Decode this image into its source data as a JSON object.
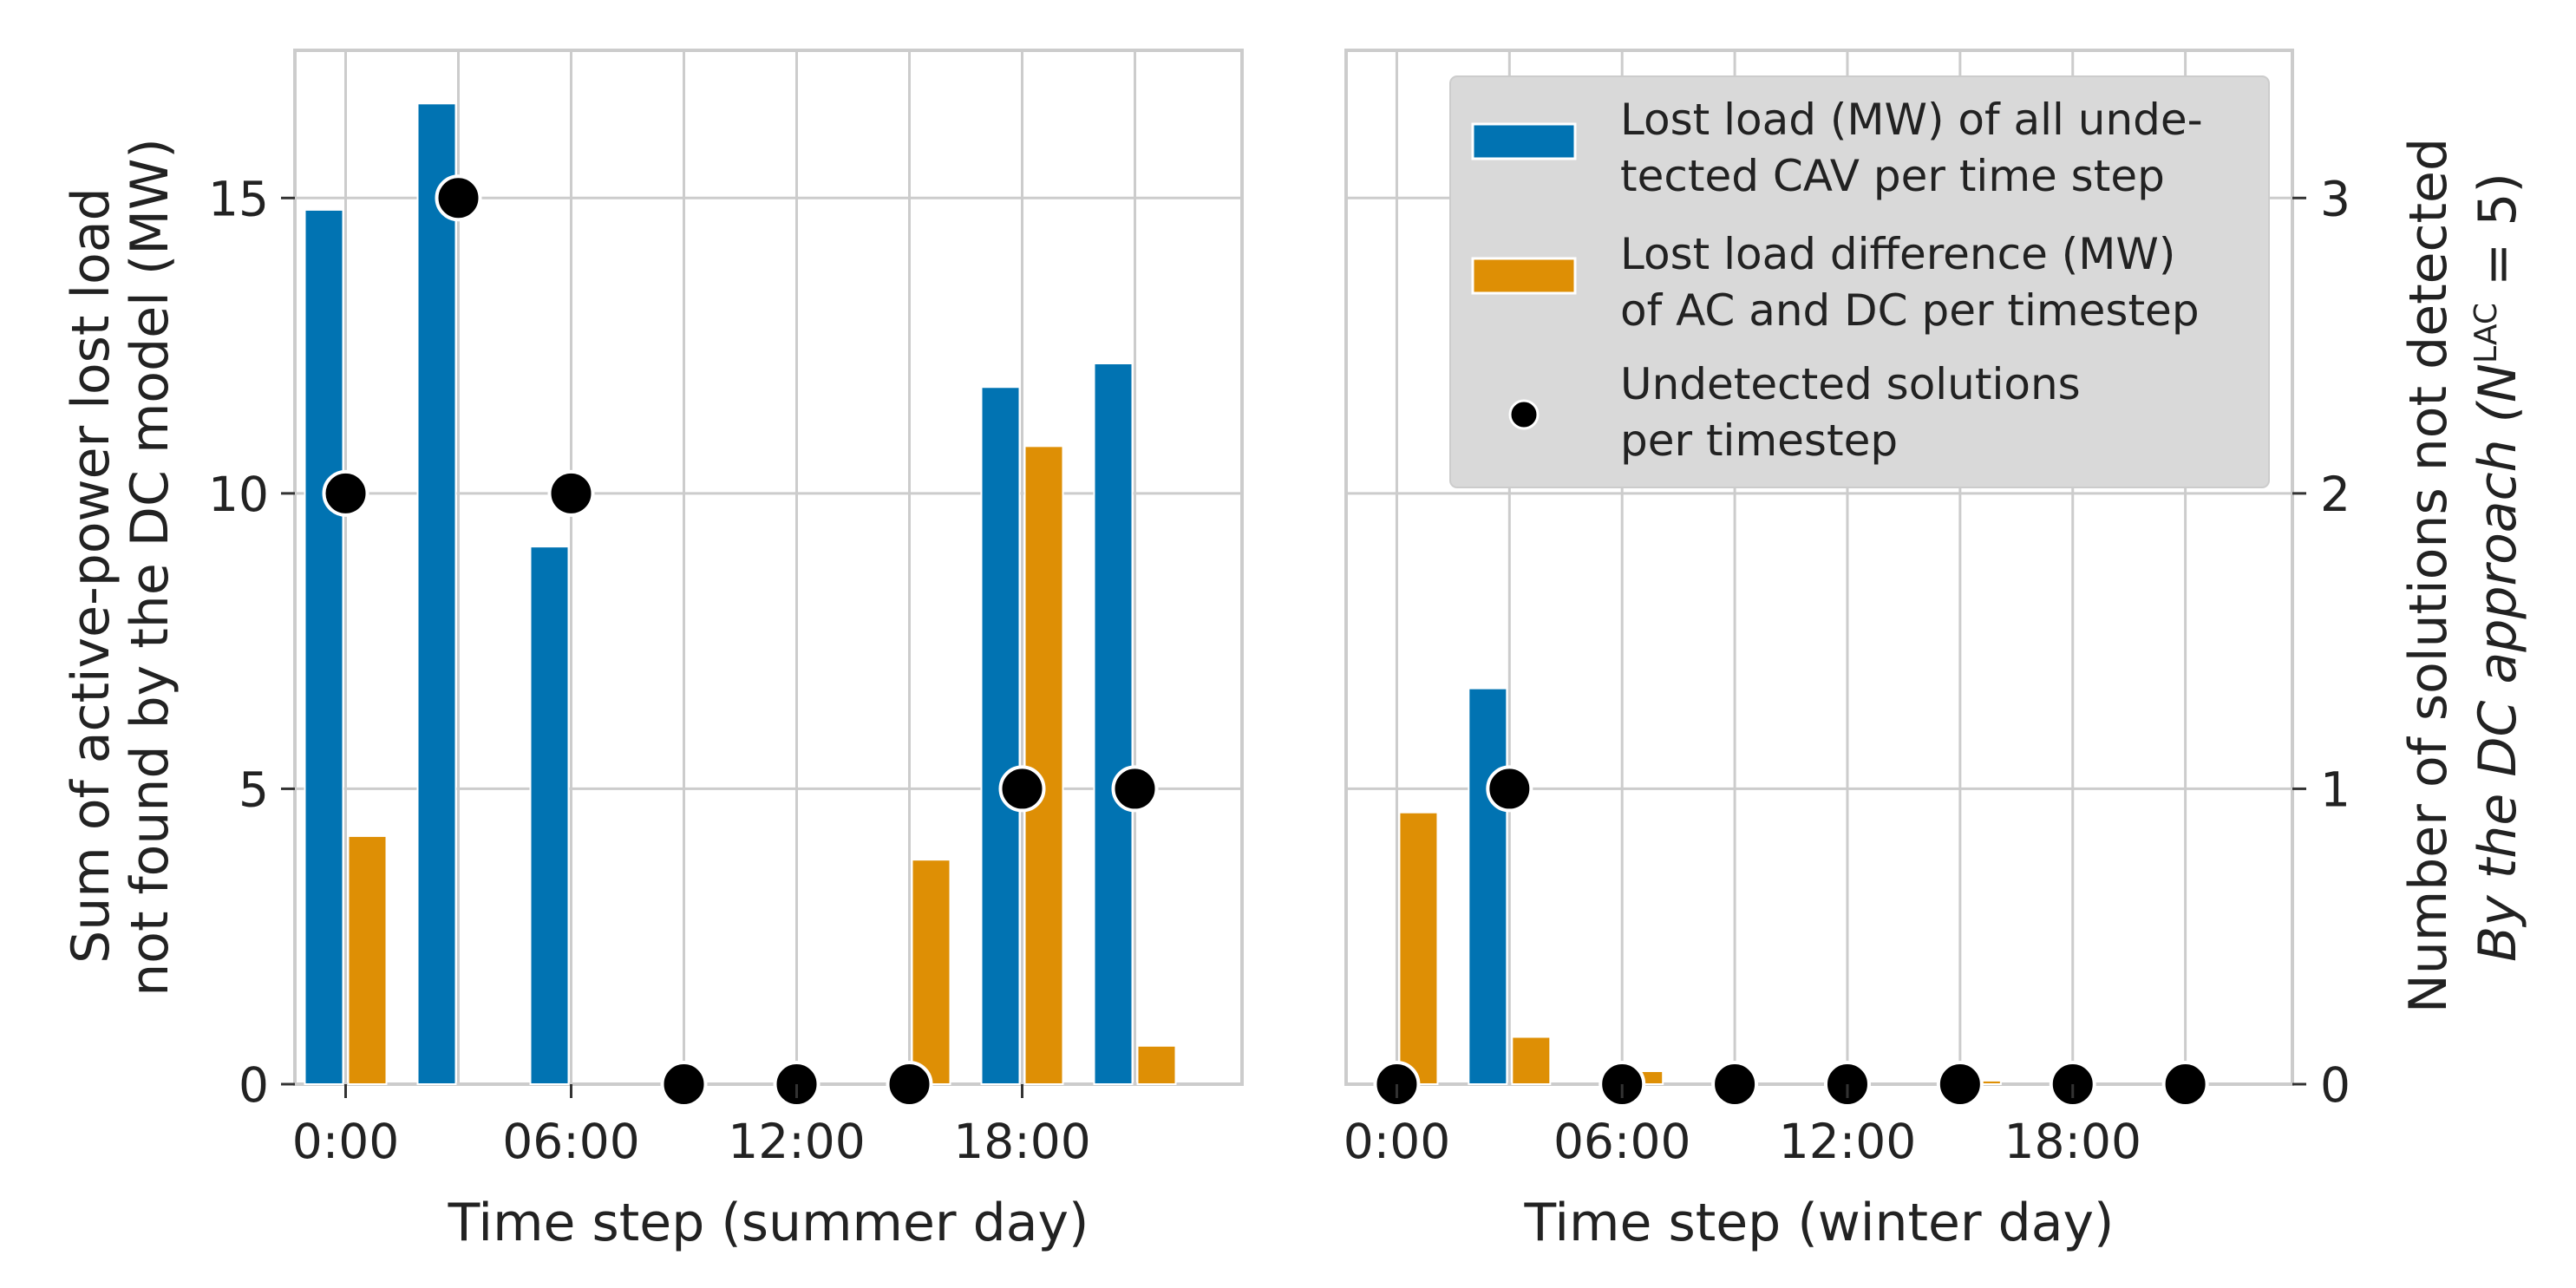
{
  "chart_data": [
    {
      "id": "summer",
      "type": "bar",
      "xlabel": "Time step (summer day)",
      "ylabel_lines": [
        "Sum of active-power lost load",
        "not found by the DC model (MW)"
      ],
      "ylim": [
        0,
        17.5
      ],
      "yticks": [
        0,
        5,
        10,
        15
      ],
      "xlim": [
        -0.45,
        7.95
      ],
      "x_tick_positions": [
        0,
        2,
        4,
        6
      ],
      "x_tick_labels": [
        "0:00",
        "06:00",
        "12:00",
        "18:00"
      ],
      "right_ylim": [
        0,
        3.5
      ],
      "grid": true,
      "series": [
        {
          "name": "Lost load (MW) of all undetected CAV per time step",
          "kind": "bar",
          "color": "#0173b2",
          "values": [
            14.8,
            16.6,
            9.1,
            0,
            0,
            0,
            11.8,
            12.2
          ]
        },
        {
          "name": "Lost load difference (MW) of AC and DC per timestep",
          "kind": "bar",
          "color": "#de8f05",
          "values": [
            4.2,
            0,
            0,
            0,
            0,
            3.8,
            10.8,
            0.65
          ]
        },
        {
          "name": "Undetected solutions per timestep",
          "kind": "scatter",
          "axis": "right",
          "color": "#000000",
          "values": [
            2,
            3,
            2,
            0,
            0,
            0,
            1,
            1
          ]
        }
      ]
    },
    {
      "id": "winter",
      "type": "bar",
      "xlabel": "Time step (winter day)",
      "ylim": [
        0,
        17.5
      ],
      "xlim": [
        -0.45,
        7.95
      ],
      "x_tick_positions": [
        0,
        2,
        4,
        6
      ],
      "x_tick_labels": [
        "0:00",
        "06:00",
        "12:00",
        "18:00"
      ],
      "right_ylim": [
        0,
        3.5
      ],
      "right_yticks": [
        0,
        1,
        2,
        3
      ],
      "right_ylabel_lines": [
        "Number of solutions not detected",
        "By the DC approach (N"
      ],
      "right_ylabel_sup": "LAC",
      "right_ylabel_end": " = 5)",
      "grid": true,
      "series": [
        {
          "name": "Lost load (MW) of all undetected CAV per time step",
          "kind": "bar",
          "color": "#0173b2",
          "values": [
            0,
            6.7,
            0,
            0,
            0,
            0,
            0,
            0
          ]
        },
        {
          "name": "Lost load difference (MW) of AC and DC per timestep",
          "kind": "bar",
          "color": "#de8f05",
          "values": [
            4.6,
            0.8,
            0.22,
            0,
            0,
            0.06,
            0,
            0
          ]
        },
        {
          "name": "Undetected solutions per timestep",
          "kind": "scatter",
          "axis": "right",
          "color": "#000000",
          "values": [
            0,
            1,
            0,
            0,
            0,
            0,
            0,
            0
          ]
        }
      ]
    }
  ],
  "legend": {
    "placement": "top-right",
    "items": [
      {
        "lines": [
          "Lost load (MW) of all unde-",
          "tected CAV per time step"
        ],
        "color": "#0173b2",
        "marker": "bar"
      },
      {
        "lines": [
          "Lost load difference (MW)",
          "of AC and DC per timestep"
        ],
        "color": "#de8f05",
        "marker": "bar"
      },
      {
        "lines": [
          "Undetected solutions",
          "per timestep"
        ],
        "color": "#000000",
        "marker": "dot"
      }
    ]
  }
}
